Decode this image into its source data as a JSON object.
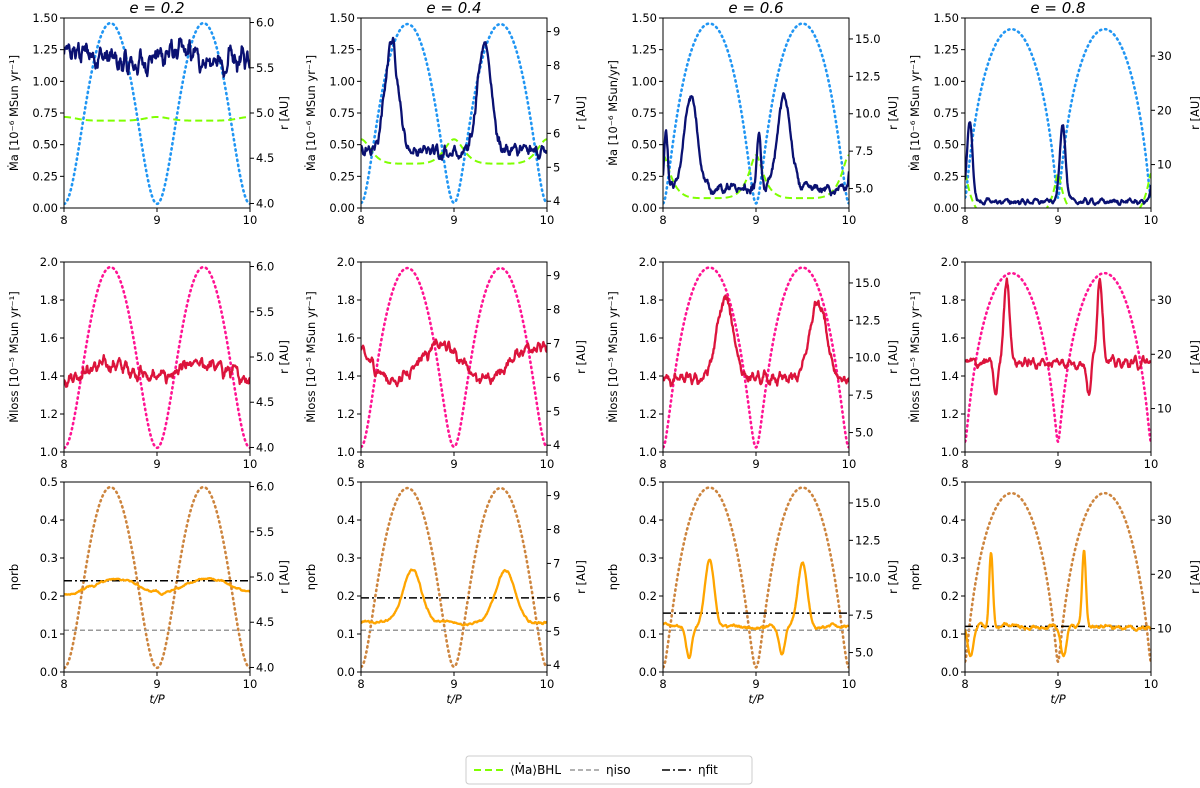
{
  "chart_data": {
    "type": "line",
    "grid": false,
    "panel_titles": [
      "e = 0.2",
      "e = 0.4",
      "e = 0.6",
      "e = 0.8"
    ],
    "xlabel": "t/P",
    "xlim": [
      8,
      10
    ],
    "xticks": [
      8,
      9,
      10
    ],
    "right_ylabel": "r [AU]",
    "columns": [
      {
        "e": 0.2,
        "title": "e = 0.2",
        "r_axis": {
          "lim": [
            3.95,
            6.05
          ],
          "ticks": [
            "4.0",
            "4.5",
            "5.0",
            "5.5",
            "6.0"
          ]
        },
        "row_accretion": {
          "ylabel": "Ṁa [10⁻⁶ MSun yr⁻¹]",
          "ylim": [
            0,
            1.5
          ],
          "yticks": [
            "0.00",
            "0.25",
            "0.50",
            "0.75",
            "1.00",
            "1.25",
            "1.50"
          ],
          "bhl_mean": 0.7,
          "bhl_amplitude": 0.03,
          "mean": 1.12,
          "amplitude": 0.18,
          "peak_phase": 0.2,
          "peak_width": 0.35,
          "noise": 0.09
        },
        "row_mass_loss": {
          "ylabel": "Ṁloss [10⁻⁵ MSun yr⁻¹]",
          "ylim": [
            1.0,
            2.0
          ],
          "yticks": [
            "1.0",
            "1.2",
            "1.4",
            "1.6",
            "1.8",
            "2.0"
          ],
          "baseline": 1.38,
          "peak_extra": 0.08,
          "peak_phase": 0.5,
          "peak_width": 0.25,
          "noise": 0.035
        },
        "row_eta": {
          "ylabel": "ηorb",
          "ylim": [
            0,
            0.5
          ],
          "yticks": [
            "0.0",
            "0.1",
            "0.2",
            "0.3",
            "0.4",
            "0.5"
          ],
          "eta_iso": 0.11,
          "eta_fit": 0.24,
          "baseline": 0.19,
          "amplitude": 0.055,
          "peak_phase": 0.55,
          "peak_width": 0.3,
          "noise": 0.006
        }
      },
      {
        "e": 0.4,
        "title": "e = 0.4",
        "r_axis": {
          "lim": [
            3.8,
            9.4
          ],
          "ticks": [
            "4",
            "5",
            "6",
            "7",
            "8",
            "9"
          ]
        },
        "row_accretion": {
          "ylabel": "Ṁa [10⁻⁶ MSun yr⁻¹]",
          "ylim": [
            0,
            1.5
          ],
          "yticks": [
            "0.00",
            "0.25",
            "0.50",
            "0.75",
            "1.00",
            "1.25",
            "1.50"
          ],
          "bhl_mean": 0.42,
          "bhl_amplitude": 0.2,
          "baseline": 0.45,
          "peak": 1.32,
          "peak_phase": 0.33,
          "peak_width": 0.07,
          "noise": 0.05
        },
        "row_mass_loss": {
          "ylabel": "Ṁloss [10⁻⁵ MSun yr⁻¹]",
          "ylim": [
            1.0,
            2.0
          ],
          "yticks": [
            "1.0",
            "1.2",
            "1.4",
            "1.6",
            "1.8",
            "2.0"
          ],
          "baseline": 1.34,
          "peak_extra": 0.22,
          "peak_phase": 0.85,
          "peak_width": 0.25,
          "noise": 0.03
        },
        "row_eta": {
          "ylabel": "ηorb",
          "ylim": [
            0,
            0.5
          ],
          "yticks": [
            "0.0",
            "0.1",
            "0.2",
            "0.3",
            "0.4",
            "0.5"
          ],
          "eta_iso": 0.11,
          "eta_fit": 0.195,
          "baseline": 0.13,
          "amplitude": 0.14,
          "peak_phase": 0.55,
          "peak_width": 0.1,
          "noise": 0.008
        }
      },
      {
        "e": 0.6,
        "title": "e = 0.6",
        "r_axis": {
          "lim": [
            3.7,
            16.4
          ],
          "ticks": [
            "5.0",
            "7.5",
            "10.0",
            "12.5",
            "15.0"
          ]
        },
        "row_accretion": {
          "ylabel": "Ṁa [10⁻⁶ MSun/yr]",
          "ylim": [
            0,
            1.5
          ],
          "yticks": [
            "0.00",
            "0.25",
            "0.50",
            "0.75",
            "1.00",
            "1.25",
            "1.50"
          ],
          "bhl_mean": 0.2,
          "bhl_amplitude": 0.35,
          "baseline": 0.15,
          "peak": 0.88,
          "peak_phase": 0.3,
          "peak_width": 0.07,
          "noise": 0.035
        },
        "row_mass_loss": {
          "ylabel": "Ṁloss [10⁻⁵ MSun yr⁻¹]",
          "ylim": [
            1.0,
            2.0
          ],
          "yticks": [
            "1.0",
            "1.2",
            "1.4",
            "1.6",
            "1.8",
            "2.0"
          ],
          "baseline": 1.38,
          "peak": 1.8,
          "peak_phase": 0.67,
          "peak_width": 0.09,
          "noise": 0.03
        },
        "row_eta": {
          "ylabel": "ηorb",
          "ylim": [
            0,
            0.5
          ],
          "yticks": [
            "0.0",
            "0.1",
            "0.2",
            "0.3",
            "0.4",
            "0.5"
          ],
          "eta_iso": 0.11,
          "eta_fit": 0.155,
          "baseline": 0.12,
          "amplitude": 0.17,
          "peak_phase": 0.5,
          "peak_width": 0.05,
          "noise": 0.01
        }
      },
      {
        "e": 0.8,
        "title": "e = 0.8",
        "r_axis": {
          "lim": [
            2.0,
            37.0
          ],
          "ticks": [
            "10",
            "20",
            "30"
          ]
        },
        "row_accretion": {
          "ylabel": "Ṁa [10⁻⁶ MSun yr⁻¹]",
          "ylim": [
            0,
            1.5
          ],
          "yticks": [
            "0.00",
            "0.25",
            "0.50",
            "0.75",
            "1.00",
            "1.25",
            "1.50"
          ],
          "bhl_mean": 0.05,
          "bhl_amplitude": 0.4,
          "baseline": 0.05,
          "peak": 0.68,
          "peak_phase": 0.05,
          "peak_width": 0.03,
          "noise": 0.02
        },
        "row_mass_loss": {
          "ylabel": "Ṁloss [10⁻⁵ MSun yr⁻¹]",
          "ylim": [
            1.0,
            2.0
          ],
          "yticks": [
            "1.0",
            "1.2",
            "1.4",
            "1.6",
            "1.8",
            "2.0"
          ],
          "baseline": 1.47,
          "peak": 1.92,
          "peak_phase": 0.45,
          "peak_width": 0.03,
          "noise": 0.025
        },
        "row_eta": {
          "ylabel": "ηorb",
          "ylim": [
            0,
            0.5
          ],
          "yticks": [
            "0.0",
            "0.1",
            "0.2",
            "0.3",
            "0.4",
            "0.5"
          ],
          "eta_iso": 0.11,
          "eta_fit": 0.12,
          "baseline": 0.12,
          "amplitude": 0.2,
          "peak_phase": 0.28,
          "peak_width": 0.02,
          "noise": 0.012
        }
      }
    ],
    "legend": {
      "placement": "bottom-center",
      "entries": [
        {
          "label": "⟨Ṁa⟩BHL",
          "style": "dashed",
          "color": "#7fff00"
        },
        {
          "label": "ηiso",
          "style": "dashed",
          "color": "#999999"
        },
        {
          "label": "ηfit",
          "style": "dashdot",
          "color": "#000000"
        }
      ]
    },
    "colors": {
      "accretion": "#0a1172",
      "bhl_mean": "#7fff00",
      "orbit_row1": "#2196f3",
      "mass_loss": "#dc143c",
      "orbit_row2": "#ff1493",
      "eta": "#ffa500",
      "orbit_row3": "#cd853f",
      "eta_iso": "#999999",
      "eta_fit": "#000000"
    }
  }
}
